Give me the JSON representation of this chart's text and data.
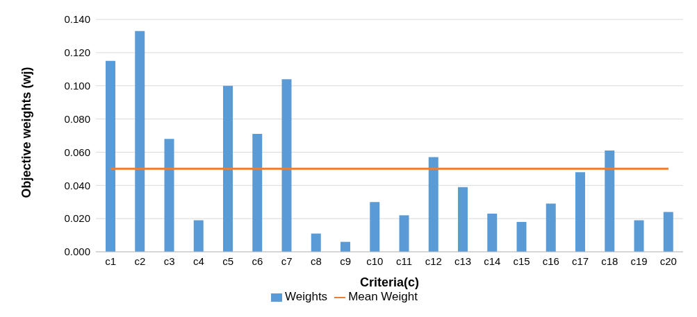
{
  "chart_data": {
    "type": "bar",
    "xlabel": "Criteria(c)",
    "ylabel": "Objective weights (wj)",
    "categories": [
      "c1",
      "c2",
      "c3",
      "c4",
      "c5",
      "c6",
      "c7",
      "c8",
      "c9",
      "c10",
      "c11",
      "c12",
      "c13",
      "c14",
      "c15",
      "c16",
      "c17",
      "c18",
      "c19",
      "c20"
    ],
    "series": [
      {
        "name": "Weights",
        "color": "#5b9bd5",
        "values": [
          0.115,
          0.133,
          0.068,
          0.019,
          0.1,
          0.071,
          0.104,
          0.011,
          0.006,
          0.03,
          0.022,
          0.057,
          0.039,
          0.023,
          0.018,
          0.029,
          0.048,
          0.061,
          0.019,
          0.024
        ]
      },
      {
        "name": "Mean Weight",
        "type": "line",
        "color": "#ed7d31",
        "values": [
          0.05,
          0.05,
          0.05,
          0.05,
          0.05,
          0.05,
          0.05,
          0.05,
          0.05,
          0.05,
          0.05,
          0.05,
          0.05,
          0.05,
          0.05,
          0.05,
          0.05,
          0.05,
          0.05,
          0.05
        ]
      }
    ],
    "ylim": [
      0,
      0.14
    ],
    "yticks": [
      {
        "value": 0,
        "label": "0.000"
      },
      {
        "value": 0.02,
        "label": "0.020"
      },
      {
        "value": 0.04,
        "label": "0.040"
      },
      {
        "value": 0.06,
        "label": "0.060"
      },
      {
        "value": 0.08,
        "label": "0.080"
      },
      {
        "value": 0.1,
        "label": "0.100"
      },
      {
        "value": 0.12,
        "label": "0.120"
      },
      {
        "value": 0.14,
        "label": "0.140"
      }
    ],
    "grid": "y",
    "legend": "bottom",
    "marker": "none"
  }
}
